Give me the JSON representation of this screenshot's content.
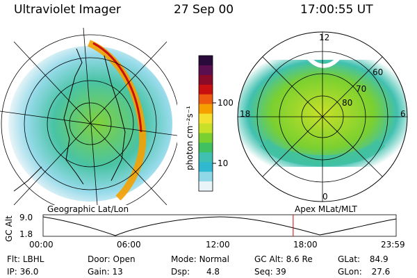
{
  "header": {
    "instrument": "Ultraviolet Imager",
    "date": "27 Sep 00",
    "time": "17:00:55 UT"
  },
  "left_map": {
    "caption": "Geographic Lat/Lon"
  },
  "right_map": {
    "caption": "Apex MLat/MLT",
    "mlt_labels": {
      "top": "12",
      "left": "18",
      "right": "6",
      "bottom": "0"
    },
    "lat_labels": [
      "60",
      "70",
      "80"
    ]
  },
  "colorbar": {
    "unit_label": "photon cm⁻²s⁻¹",
    "ticks": [
      "100",
      "10"
    ],
    "scale": "log",
    "colors": [
      "#2a0a3a",
      "#5a1050",
      "#8a0a2a",
      "#c81010",
      "#ee5a10",
      "#f5a000",
      "#f5e030",
      "#c8e028",
      "#7ad030",
      "#40c060",
      "#40c0b0",
      "#30b8d0",
      "#90d8e8",
      "#e8f4f8"
    ]
  },
  "altitude_plot": {
    "ylabel": "GC Alt",
    "yticks": [
      "9.0",
      "1.8"
    ],
    "xticks": [
      "00:00",
      "06:00",
      "12:00",
      "18:00",
      "23:59"
    ],
    "marker_time_hours": 17.0,
    "marker_color": "#d00000"
  },
  "info": {
    "flt_label": "Flt:",
    "flt_value": "LBHL",
    "ip_label": "IP:",
    "ip_value": "36.0",
    "door_label": "Door:",
    "door_value": "Open",
    "gain_label": "Gain:",
    "gain_value": "13",
    "mode_label": "Mode:",
    "mode_value": "Normal",
    "dsp_label": "Dsp:",
    "dsp_value": "4.8",
    "gcalt_label": "GC Alt:",
    "gcalt_value": "8.6 Re",
    "seq_label": "Seq:",
    "seq_value": "39",
    "glat_label": "GLat:",
    "glat_value": "84.9",
    "glon_label": "GLon:",
    "glon_value": "27.6"
  }
}
